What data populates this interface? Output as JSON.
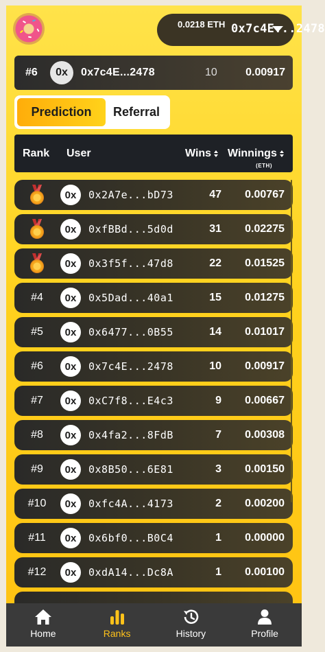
{
  "header": {
    "wallet_address": "0x7c4E...2478",
    "wallet_balance": "0.0218 ETH"
  },
  "my_rank": {
    "rank": "#6",
    "avatar": "0x",
    "address": "0x7c4E...2478",
    "wins": "10",
    "winnings": "0.00917"
  },
  "tabs": [
    {
      "label": "Prediction",
      "active": true
    },
    {
      "label": "Referral",
      "active": false
    }
  ],
  "table": {
    "headers": {
      "rank": "Rank",
      "user": "User",
      "wins": "Wins",
      "winnings": "Winnings",
      "unit": "(ETH)"
    },
    "rows": [
      {
        "rank": "",
        "medal": "gold-medal-icon",
        "avatar": "0x",
        "address": "0x2A7e...bD73",
        "wins": "47",
        "winnings": "0.00767"
      },
      {
        "rank": "",
        "medal": "silver-medal-icon",
        "avatar": "0x",
        "address": "0xfBBd...5d0d",
        "wins": "31",
        "winnings": "0.02275"
      },
      {
        "rank": "",
        "medal": "bronze-medal-icon",
        "avatar": "0x",
        "address": "0x3f5f...47d8",
        "wins": "22",
        "winnings": "0.01525"
      },
      {
        "rank": "#4",
        "avatar": "0x",
        "address": "0x5Dad...40a1",
        "wins": "15",
        "winnings": "0.01275"
      },
      {
        "rank": "#5",
        "avatar": "0x",
        "address": "0x6477...0B55",
        "wins": "14",
        "winnings": "0.01017"
      },
      {
        "rank": "#6",
        "avatar": "0x",
        "address": "0x7c4E...2478",
        "wins": "10",
        "winnings": "0.00917"
      },
      {
        "rank": "#7",
        "avatar": "0x",
        "address": "0xC7f8...E4c3",
        "wins": "9",
        "winnings": "0.00667"
      },
      {
        "rank": "#8",
        "avatar": "0x",
        "address": "0x4fa2...8FdB",
        "wins": "7",
        "winnings": "0.00308"
      },
      {
        "rank": "#9",
        "avatar": "0x",
        "address": "0x8B50...6E81",
        "wins": "3",
        "winnings": "0.00150"
      },
      {
        "rank": "#10",
        "avatar": "0x",
        "address": "0xfc4A...4173",
        "wins": "2",
        "winnings": "0.00200"
      },
      {
        "rank": "#11",
        "avatar": "0x",
        "address": "0x6bf0...B0C4",
        "wins": "1",
        "winnings": "0.00000"
      },
      {
        "rank": "#12",
        "avatar": "0x",
        "address": "0xdA14...Dc8A",
        "wins": "1",
        "winnings": "0.00100"
      }
    ]
  },
  "nav": [
    {
      "label": "Home",
      "icon": "home-icon",
      "active": false
    },
    {
      "label": "Ranks",
      "icon": "bar-chart-icon",
      "active": true
    },
    {
      "label": "History",
      "icon": "history-icon",
      "active": false
    },
    {
      "label": "Profile",
      "icon": "user-icon",
      "active": false
    }
  ],
  "colors": {
    "accent": "#ffc21a",
    "bar": "#3a3a3a",
    "row": "#2f2d29"
  }
}
